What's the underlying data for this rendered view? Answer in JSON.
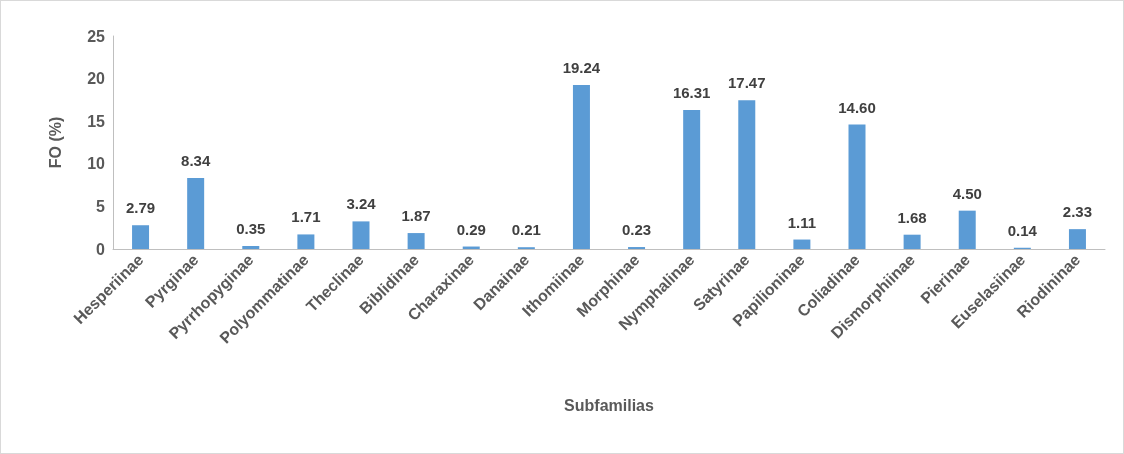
{
  "chart_data": {
    "type": "bar",
    "xlabel": "Subfamilias",
    "ylabel": "FO (%)",
    "categories": [
      "Hesperiinae",
      "Pyrginae",
      "Pyrrhopyginae",
      "Polyommatinae",
      "Theclinae",
      "Biblidinae",
      "Charaxinae",
      "Danainae",
      "Ithomiinae",
      "Morphinae",
      "Nymphalinae",
      "Satyrinae",
      "Papilioninae",
      "Coliadinae",
      "Dismorphiinae",
      "Pierinae",
      "Euselasiinae",
      "Riodininae"
    ],
    "values": [
      2.79,
      8.34,
      0.35,
      1.71,
      3.24,
      1.87,
      0.29,
      0.21,
      19.24,
      0.23,
      16.31,
      17.47,
      1.11,
      14.6,
      1.68,
      4.5,
      0.14,
      2.33
    ],
    "value_labels": [
      "2.79",
      "8.34",
      "0.35",
      "1.71",
      "3.24",
      "1.87",
      "0.29",
      "0.21",
      "19.24",
      "0.23",
      "16.31",
      "17.47",
      "1.11",
      "14.60",
      "1.68",
      "4.50",
      "0.14",
      "2.33"
    ],
    "color": "#5b9bd5",
    "ylim": [
      0,
      25
    ],
    "yticks": [
      0,
      5,
      10,
      15,
      20,
      25
    ],
    "grid": false
  }
}
